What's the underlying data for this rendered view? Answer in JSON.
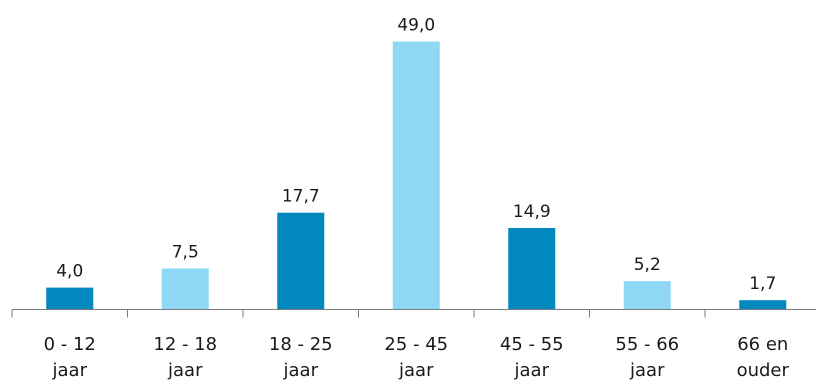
{
  "chart_data": {
    "type": "bar",
    "categories": [
      [
        "0 - 12",
        "jaar"
      ],
      [
        "12 - 18",
        "jaar"
      ],
      [
        "18 - 25",
        "jaar"
      ],
      [
        "25 - 45",
        "jaar"
      ],
      [
        "45 - 55",
        "jaar"
      ],
      [
        "55 - 66",
        "jaar"
      ],
      [
        "66 en",
        "ouder"
      ]
    ],
    "values": [
      4.0,
      7.5,
      17.7,
      49.0,
      14.9,
      5.2,
      1.7
    ],
    "value_labels": [
      "4,0",
      "7,5",
      "17,7",
      "49,0",
      "14,9",
      "5,2",
      "1,7"
    ],
    "bar_colors": [
      "#0088bf",
      "#8fd8f5",
      "#0088bf",
      "#8fd8f5",
      "#0088bf",
      "#8fd8f5",
      "#0088bf"
    ],
    "title": "",
    "xlabel": "",
    "ylabel": "",
    "ylim": [
      0,
      49
    ],
    "grid": false,
    "legend": "none"
  },
  "colors": {
    "dark_blue": "#0088bf",
    "light_blue": "#8fd8f5",
    "axis": "#7a7a7a"
  }
}
